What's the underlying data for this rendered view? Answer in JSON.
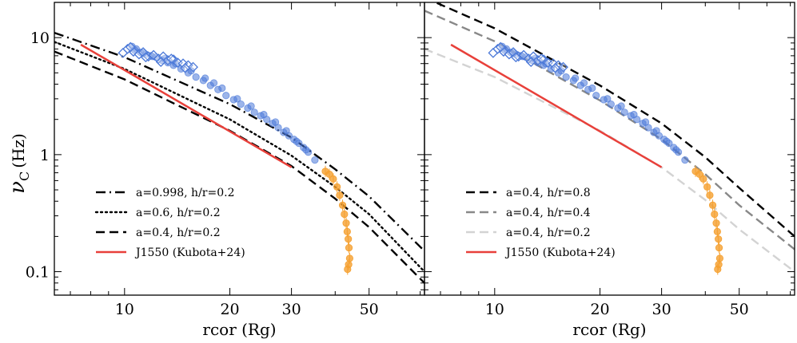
{
  "chart_data": [
    {
      "type": "scatter",
      "panel": "left",
      "xscale": "log",
      "yscale": "log",
      "xlim": [
        6.3,
        72
      ],
      "ylim": [
        0.063,
        20
      ],
      "xlabel": "rcor (Rg)",
      "ylabel_main": "ν",
      "ylabel_sub": "C",
      "ylabel_unit": "(Hz)",
      "xticks": [
        {
          "value": 10,
          "label": "10"
        },
        {
          "value": 20,
          "label": "20"
        },
        {
          "value": 30,
          "label": "30"
        },
        {
          "value": 50,
          "label": "50"
        }
      ],
      "yticks": [
        {
          "value": 0.1,
          "label": "0.1"
        },
        {
          "value": 1,
          "label": "1"
        },
        {
          "value": 10,
          "label": "10"
        }
      ],
      "legend_position": "lower-left",
      "lines": [
        {
          "name": "a=0.998, h/r=0.2",
          "style": "dashdot",
          "color": "#000000",
          "x": [
            6.3,
            10,
            20,
            30,
            40,
            50,
            72
          ],
          "y": [
            11.0,
            6.8,
            2.7,
            1.4,
            0.75,
            0.44,
            0.15
          ]
        },
        {
          "name": "a=0.6, h/r=0.2",
          "style": "dotted",
          "color": "#000000",
          "x": [
            6.3,
            10,
            20,
            30,
            40,
            50,
            72
          ],
          "y": [
            9.2,
            5.4,
            2.0,
            0.98,
            0.53,
            0.31,
            0.1
          ]
        },
        {
          "name": "a=0.4, h/r=0.2",
          "style": "dashed",
          "color": "#000000",
          "x": [
            6.3,
            10,
            20,
            30,
            40,
            50,
            72
          ],
          "y": [
            7.6,
            4.4,
            1.6,
            0.8,
            0.42,
            0.24,
            0.08
          ]
        },
        {
          "name": "J1550 (Kubota+24)",
          "style": "solid",
          "color": "#e8403a",
          "x": [
            7.5,
            30
          ],
          "y": [
            8.7,
            0.78
          ]
        }
      ],
      "scatter_blue_diamonds": {
        "x": [
          9.9,
          10.2,
          10.6,
          11.0,
          11.3,
          11.7,
          12.1,
          12.5,
          12.9,
          13.3,
          13.8,
          14.2,
          14.7,
          15.2,
          15.7,
          10.4,
          11.5,
          12.7,
          13.6,
          14.9
        ],
        "y": [
          7.4,
          8.0,
          7.6,
          7.2,
          7.5,
          6.9,
          7.1,
          6.6,
          6.9,
          6.4,
          6.5,
          6.1,
          6.0,
          5.8,
          5.6,
          8.3,
          6.8,
          6.2,
          6.6,
          5.5
        ]
      },
      "scatter_blue_circles": {
        "x": [
          10.5,
          10.8,
          11.1,
          11.5,
          11.9,
          12.3,
          12.8,
          13.3,
          13.8,
          14.5,
          15.2,
          16.0,
          16.8,
          17.6,
          18.5,
          19.5,
          20.5,
          21.5,
          22.5,
          23.5,
          24.5,
          25.5,
          26.5,
          27.5,
          28.5,
          29.5,
          30.5,
          31.5,
          32.5,
          33.5,
          35.0,
          10.7,
          11.3,
          12.0,
          13.0,
          14.0,
          15.5,
          17.0,
          18.0,
          19.0,
          21.0,
          23.0,
          25.0,
          27.0,
          29.0,
          31.0,
          33.0
        ],
        "y": [
          8.4,
          8.0,
          7.5,
          7.2,
          7.0,
          6.8,
          6.4,
          6.1,
          5.8,
          5.4,
          5.0,
          4.6,
          4.3,
          3.9,
          3.6,
          3.2,
          2.95,
          2.7,
          2.5,
          2.3,
          2.15,
          2.0,
          1.85,
          1.7,
          1.55,
          1.45,
          1.35,
          1.25,
          1.15,
          1.05,
          0.9,
          7.8,
          7.4,
          6.9,
          6.6,
          6.0,
          5.2,
          4.5,
          4.1,
          3.7,
          3.0,
          2.6,
          2.2,
          1.9,
          1.6,
          1.3,
          1.1
        ]
      },
      "scatter_orange": {
        "x": [
          37.5,
          38.5,
          39.5,
          40.5,
          41.2,
          42.0,
          42.5,
          43.0,
          43.3,
          43.6,
          43.8,
          44.0,
          43.7,
          43.4
        ],
        "y": [
          0.72,
          0.68,
          0.62,
          0.53,
          0.45,
          0.37,
          0.31,
          0.26,
          0.22,
          0.19,
          0.16,
          0.13,
          0.115,
          0.105
        ]
      }
    },
    {
      "type": "scatter",
      "panel": "right",
      "xscale": "log",
      "yscale": "log",
      "xlim": [
        6.3,
        72
      ],
      "ylim": [
        0.063,
        20
      ],
      "xlabel": "rcor (Rg)",
      "xticks": [
        {
          "value": 10,
          "label": "10"
        },
        {
          "value": 20,
          "label": "20"
        },
        {
          "value": 30,
          "label": "30"
        },
        {
          "value": 50,
          "label": "50"
        }
      ],
      "legend_position": "lower-left",
      "lines": [
        {
          "name": "a=0.4, h/r=0.8",
          "style": "dashed",
          "color": "#000000",
          "x": [
            6.3,
            10,
            20,
            30,
            40,
            50,
            72
          ],
          "y": [
            22.0,
            12.0,
            3.9,
            1.85,
            0.95,
            0.52,
            0.2
          ]
        },
        {
          "name": "a=0.4, h/r=0.4",
          "style": "dashed",
          "color": "#888888",
          "x": [
            6.3,
            10,
            20,
            30,
            40,
            50,
            72
          ],
          "y": [
            17.0,
            9.3,
            2.9,
            1.35,
            0.68,
            0.37,
            0.155
          ]
        },
        {
          "name": "a=0.4, h/r=0.2",
          "style": "dashed",
          "color": "#d3d3d3",
          "x": [
            6.3,
            10,
            20,
            30,
            40,
            50,
            72
          ],
          "y": [
            8.0,
            4.6,
            1.6,
            0.78,
            0.41,
            0.23,
            0.1
          ]
        },
        {
          "name": "J1550 (Kubota+24)",
          "style": "solid",
          "color": "#e8403a",
          "x": [
            7.5,
            30
          ],
          "y": [
            8.7,
            0.78
          ]
        }
      ],
      "scatter_blue_diamonds": {
        "x": [
          9.9,
          10.2,
          10.6,
          11.0,
          11.3,
          11.7,
          12.1,
          12.5,
          12.9,
          13.3,
          13.8,
          14.2,
          14.7,
          15.2,
          15.7,
          10.4,
          11.5,
          12.7,
          13.6,
          14.9
        ],
        "y": [
          7.4,
          8.0,
          7.6,
          7.2,
          7.5,
          6.9,
          7.1,
          6.6,
          6.9,
          6.4,
          6.5,
          6.1,
          6.0,
          5.8,
          5.6,
          8.3,
          6.8,
          6.2,
          6.6,
          5.5
        ]
      },
      "scatter_blue_circles": {
        "x": [
          10.5,
          10.8,
          11.1,
          11.5,
          11.9,
          12.3,
          12.8,
          13.3,
          13.8,
          14.5,
          15.2,
          16.0,
          16.8,
          17.6,
          18.5,
          19.5,
          20.5,
          21.5,
          22.5,
          23.5,
          24.5,
          25.5,
          26.5,
          27.5,
          28.5,
          29.5,
          30.5,
          31.5,
          32.5,
          33.5,
          35.0,
          10.7,
          11.3,
          12.0,
          13.0,
          14.0,
          15.5,
          17.0,
          18.0,
          19.0,
          21.0,
          23.0,
          25.0,
          27.0,
          29.0,
          31.0,
          33.0
        ],
        "y": [
          8.4,
          8.0,
          7.5,
          7.2,
          7.0,
          6.8,
          6.4,
          6.1,
          5.8,
          5.4,
          5.0,
          4.6,
          4.3,
          3.9,
          3.6,
          3.2,
          2.95,
          2.7,
          2.5,
          2.3,
          2.15,
          2.0,
          1.85,
          1.7,
          1.55,
          1.45,
          1.35,
          1.25,
          1.15,
          1.05,
          0.9,
          7.8,
          7.4,
          6.9,
          6.6,
          6.0,
          5.2,
          4.5,
          4.1,
          3.7,
          3.0,
          2.6,
          2.2,
          1.9,
          1.6,
          1.3,
          1.1
        ]
      },
      "scatter_orange": {
        "x": [
          37.5,
          38.5,
          39.5,
          40.5,
          41.2,
          42.0,
          42.5,
          43.0,
          43.3,
          43.6,
          43.8,
          44.0,
          43.7,
          43.4
        ],
        "y": [
          0.72,
          0.68,
          0.62,
          0.53,
          0.45,
          0.37,
          0.31,
          0.26,
          0.22,
          0.19,
          0.16,
          0.13,
          0.115,
          0.105
        ]
      }
    }
  ],
  "colors": {
    "blue": "#4a78d8",
    "orange": "#f5a030",
    "red": "#e8403a"
  }
}
